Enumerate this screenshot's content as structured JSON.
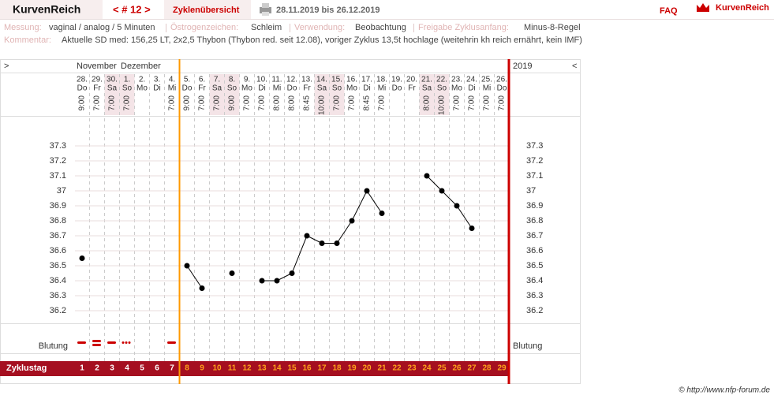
{
  "header": {
    "brand": "KurvenReich",
    "cycle_nav": "< # 12 >",
    "overview": "Zyklenübersicht",
    "date_range": "28.11.2019 bis 26.12.2019",
    "faq": "FAQ",
    "logo": "KurvenReich"
  },
  "info": {
    "fields": [
      {
        "label": "Messung:",
        "value": "vaginal / analog / 5 Minuten"
      },
      {
        "label": "Östrogenzeichen:",
        "value": "Schleim"
      },
      {
        "label": "Verwendung:",
        "value": "Beobachtung"
      },
      {
        "label": "Freigabe Zyklusanfang:",
        "value": "Minus-8-Regel"
      }
    ],
    "comment": {
      "label": "Kommentar:",
      "value": "Aktuelle SD med: 156,25 LT, 2x2,5 Thybon (Thybon red. seit 12.08), voriger Zyklus 13,5t hochlage (weitehrin kh reich ernährt, kein IMF)"
    }
  },
  "chart_data": {
    "type": "line",
    "nav_left": ">",
    "nav_right": "<",
    "months": [
      "November",
      "Dezember"
    ],
    "year": "2019",
    "dates": [
      "28.",
      "29.",
      "30.",
      "1.",
      "2.",
      "3.",
      "4.",
      "5.",
      "6.",
      "7.",
      "8.",
      "9.",
      "10.",
      "11.",
      "12.",
      "13.",
      "14.",
      "15.",
      "16.",
      "17.",
      "18.",
      "19.",
      "20.",
      "21.",
      "22.",
      "23.",
      "24.",
      "25.",
      "26."
    ],
    "weekdays": [
      "Do",
      "Fr",
      "Sa",
      "So",
      "Mo",
      "Di",
      "Mi",
      "Do",
      "Fr",
      "Sa",
      "So",
      "Mo",
      "Di",
      "Mi",
      "Do",
      "Fr",
      "Sa",
      "So",
      "Mo",
      "Di",
      "Mi",
      "Do",
      "Fr",
      "Sa",
      "So",
      "Mo",
      "Di",
      "Mi",
      "Do"
    ],
    "times": [
      "9:00",
      "7:00",
      "7:00",
      "7:00",
      null,
      null,
      "7:00",
      "9:00",
      "7:00",
      "7:00",
      "9:00",
      "7:00",
      "7:00",
      "8:00",
      "8:00",
      "8:45",
      "10:00",
      "7:00",
      "7:00",
      "8:45",
      "7:00",
      null,
      null,
      "8:00",
      "10:00",
      "7:00",
      "7:00",
      "7:00",
      "7:00"
    ],
    "bleeding_label": "Blutung",
    "cycle_day_label": "Zyklustag",
    "categories": [
      1,
      2,
      3,
      4,
      5,
      6,
      7,
      8,
      9,
      10,
      11,
      12,
      13,
      14,
      15,
      16,
      17,
      18,
      19,
      20,
      21,
      22,
      23,
      24,
      25,
      26,
      27,
      28,
      29
    ],
    "values": [
      36.55,
      null,
      null,
      null,
      null,
      null,
      null,
      36.5,
      36.35,
      null,
      36.45,
      null,
      36.4,
      36.4,
      36.45,
      36.7,
      36.65,
      36.65,
      36.8,
      37.0,
      36.85,
      null,
      null,
      37.1,
      37.0,
      36.9,
      36.75,
      null,
      null
    ],
    "color": "#000000",
    "ylim": [
      36.1,
      37.5
    ],
    "yticks": [
      36.2,
      36.3,
      36.4,
      36.5,
      36.6,
      36.7,
      36.8,
      36.9,
      37,
      37.1,
      37.2,
      37.3
    ],
    "grid": true
  },
  "footer": "© http://www.nfp-forum.de"
}
